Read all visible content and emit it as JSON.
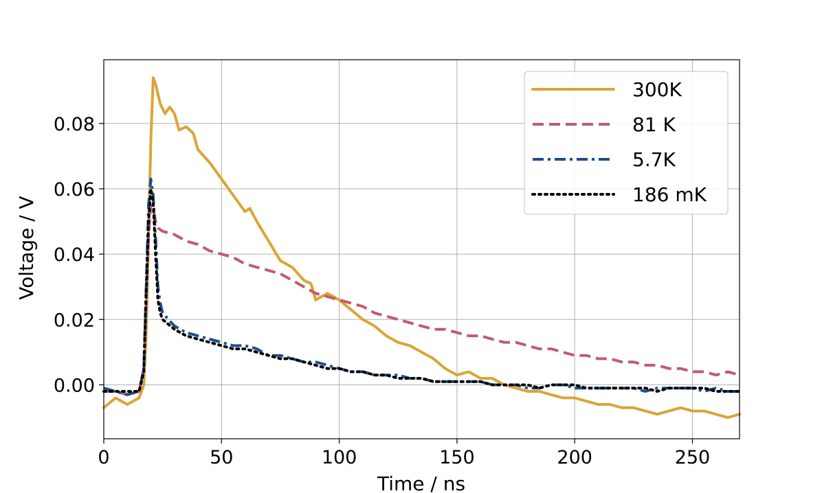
{
  "chart_data": {
    "type": "line",
    "title": "",
    "xlabel": "Time / ns",
    "ylabel": "Voltage / V",
    "xlim": [
      0,
      270
    ],
    "ylim": [
      -0.0165,
      0.0995
    ],
    "xticks": [
      0,
      50,
      100,
      150,
      200,
      250
    ],
    "xtick_labels": [
      "0",
      "50",
      "100",
      "150",
      "200",
      "250"
    ],
    "yticks": [
      0.0,
      0.02,
      0.04,
      0.06,
      0.08
    ],
    "ytick_labels": [
      "0.00",
      "0.02",
      "0.04",
      "0.06",
      "0.08"
    ],
    "grid": true,
    "legend_position": "top-right",
    "series": [
      {
        "name": "300K",
        "color": "#daa537",
        "style": "solid",
        "x": [
          0,
          5,
          10,
          15,
          17,
          18,
          19,
          20,
          21,
          22,
          24,
          26,
          28,
          30,
          32,
          35,
          38,
          40,
          45,
          50,
          55,
          60,
          62,
          65,
          70,
          75,
          80,
          85,
          88,
          90,
          95,
          100,
          105,
          110,
          115,
          120,
          125,
          130,
          135,
          140,
          145,
          150,
          155,
          160,
          165,
          170,
          175,
          180,
          185,
          190,
          195,
          200,
          205,
          210,
          215,
          220,
          225,
          230,
          235,
          240,
          245,
          250,
          255,
          260,
          265,
          270
        ],
        "y": [
          -0.007,
          -0.004,
          -0.006,
          -0.004,
          0.0,
          0.015,
          0.045,
          0.075,
          0.094,
          0.092,
          0.086,
          0.083,
          0.085,
          0.083,
          0.078,
          0.079,
          0.077,
          0.072,
          0.068,
          0.063,
          0.058,
          0.053,
          0.054,
          0.05,
          0.044,
          0.038,
          0.036,
          0.032,
          0.031,
          0.026,
          0.028,
          0.026,
          0.023,
          0.02,
          0.018,
          0.015,
          0.013,
          0.012,
          0.01,
          0.008,
          0.005,
          0.003,
          0.004,
          0.002,
          0.002,
          0.0,
          -0.001,
          -0.002,
          -0.002,
          -0.003,
          -0.004,
          -0.004,
          -0.005,
          -0.006,
          -0.006,
          -0.007,
          -0.007,
          -0.008,
          -0.009,
          -0.008,
          -0.007,
          -0.008,
          -0.008,
          -0.009,
          -0.01,
          -0.009
        ]
      },
      {
        "name": "81 K",
        "color": "#c25a6c",
        "style": "dashed",
        "x": [
          0,
          5,
          10,
          15,
          17,
          18,
          19,
          20,
          21,
          22,
          23,
          25,
          30,
          35,
          40,
          45,
          50,
          55,
          60,
          65,
          70,
          75,
          80,
          85,
          90,
          95,
          100,
          105,
          110,
          115,
          120,
          125,
          130,
          135,
          140,
          145,
          150,
          155,
          160,
          165,
          170,
          175,
          180,
          185,
          190,
          195,
          200,
          205,
          210,
          215,
          220,
          225,
          230,
          235,
          240,
          245,
          250,
          255,
          260,
          265,
          270
        ],
        "y": [
          -0.002,
          -0.002,
          -0.003,
          -0.002,
          0.005,
          0.025,
          0.045,
          0.055,
          0.054,
          0.05,
          0.048,
          0.047,
          0.046,
          0.044,
          0.043,
          0.041,
          0.04,
          0.039,
          0.037,
          0.036,
          0.035,
          0.034,
          0.032,
          0.03,
          0.028,
          0.027,
          0.026,
          0.025,
          0.024,
          0.022,
          0.021,
          0.02,
          0.019,
          0.018,
          0.017,
          0.017,
          0.016,
          0.015,
          0.015,
          0.014,
          0.013,
          0.013,
          0.012,
          0.011,
          0.011,
          0.01,
          0.009,
          0.009,
          0.008,
          0.008,
          0.007,
          0.007,
          0.006,
          0.006,
          0.005,
          0.005,
          0.004,
          0.004,
          0.003,
          0.004,
          0.003
        ]
      },
      {
        "name": "5.7K",
        "color": "#1a4f8c",
        "style": "dashdot",
        "x": [
          0,
          5,
          10,
          15,
          17,
          18,
          19,
          20,
          21,
          22,
          23,
          24,
          25,
          30,
          35,
          40,
          45,
          50,
          55,
          60,
          65,
          70,
          75,
          80,
          85,
          90,
          95,
          100,
          105,
          110,
          115,
          120,
          125,
          130,
          135,
          140,
          145,
          150,
          155,
          160,
          165,
          170,
          175,
          180,
          185,
          190,
          195,
          200,
          205,
          210,
          215,
          220,
          225,
          230,
          235,
          240,
          245,
          250,
          255,
          260,
          265,
          270
        ],
        "y": [
          -0.001,
          -0.002,
          -0.003,
          -0.002,
          0.005,
          0.03,
          0.055,
          0.063,
          0.058,
          0.045,
          0.03,
          0.025,
          0.022,
          0.018,
          0.016,
          0.015,
          0.014,
          0.013,
          0.012,
          0.012,
          0.011,
          0.009,
          0.009,
          0.008,
          0.007,
          0.007,
          0.006,
          0.005,
          0.004,
          0.004,
          0.003,
          0.003,
          0.003,
          0.002,
          0.002,
          0.001,
          0.001,
          0.001,
          0.001,
          0.001,
          0.0,
          0.0,
          0.0,
          -0.001,
          -0.001,
          0.0,
          0.0,
          -0.001,
          -0.001,
          -0.001,
          -0.001,
          -0.001,
          -0.001,
          -0.002,
          -0.001,
          -0.001,
          -0.001,
          -0.001,
          -0.002,
          -0.001,
          -0.002,
          -0.002
        ]
      },
      {
        "name": "186 mK",
        "color": "#000000",
        "style": "dotted",
        "x": [
          0,
          5,
          10,
          15,
          17,
          18,
          19,
          20,
          21,
          22,
          23,
          24,
          25,
          30,
          35,
          40,
          45,
          50,
          55,
          60,
          65,
          70,
          75,
          80,
          85,
          90,
          95,
          100,
          105,
          110,
          115,
          120,
          125,
          130,
          135,
          140,
          145,
          150,
          155,
          160,
          165,
          170,
          175,
          180,
          185,
          190,
          195,
          200,
          205,
          210,
          215,
          220,
          225,
          230,
          235,
          240,
          245,
          250,
          255,
          260,
          265,
          270
        ],
        "y": [
          -0.002,
          -0.002,
          -0.002,
          -0.002,
          0.004,
          0.028,
          0.05,
          0.06,
          0.056,
          0.04,
          0.026,
          0.022,
          0.02,
          0.017,
          0.015,
          0.014,
          0.013,
          0.012,
          0.011,
          0.011,
          0.01,
          0.009,
          0.008,
          0.008,
          0.007,
          0.006,
          0.005,
          0.005,
          0.004,
          0.004,
          0.003,
          0.003,
          0.002,
          0.002,
          0.002,
          0.001,
          0.001,
          0.001,
          0.001,
          0.001,
          0.0,
          0.0,
          0.0,
          0.0,
          -0.001,
          0.0,
          0.0,
          0.0,
          -0.001,
          -0.001,
          -0.001,
          -0.001,
          -0.001,
          -0.001,
          -0.002,
          -0.001,
          -0.001,
          -0.001,
          -0.001,
          -0.002,
          -0.002,
          -0.002
        ]
      }
    ]
  }
}
